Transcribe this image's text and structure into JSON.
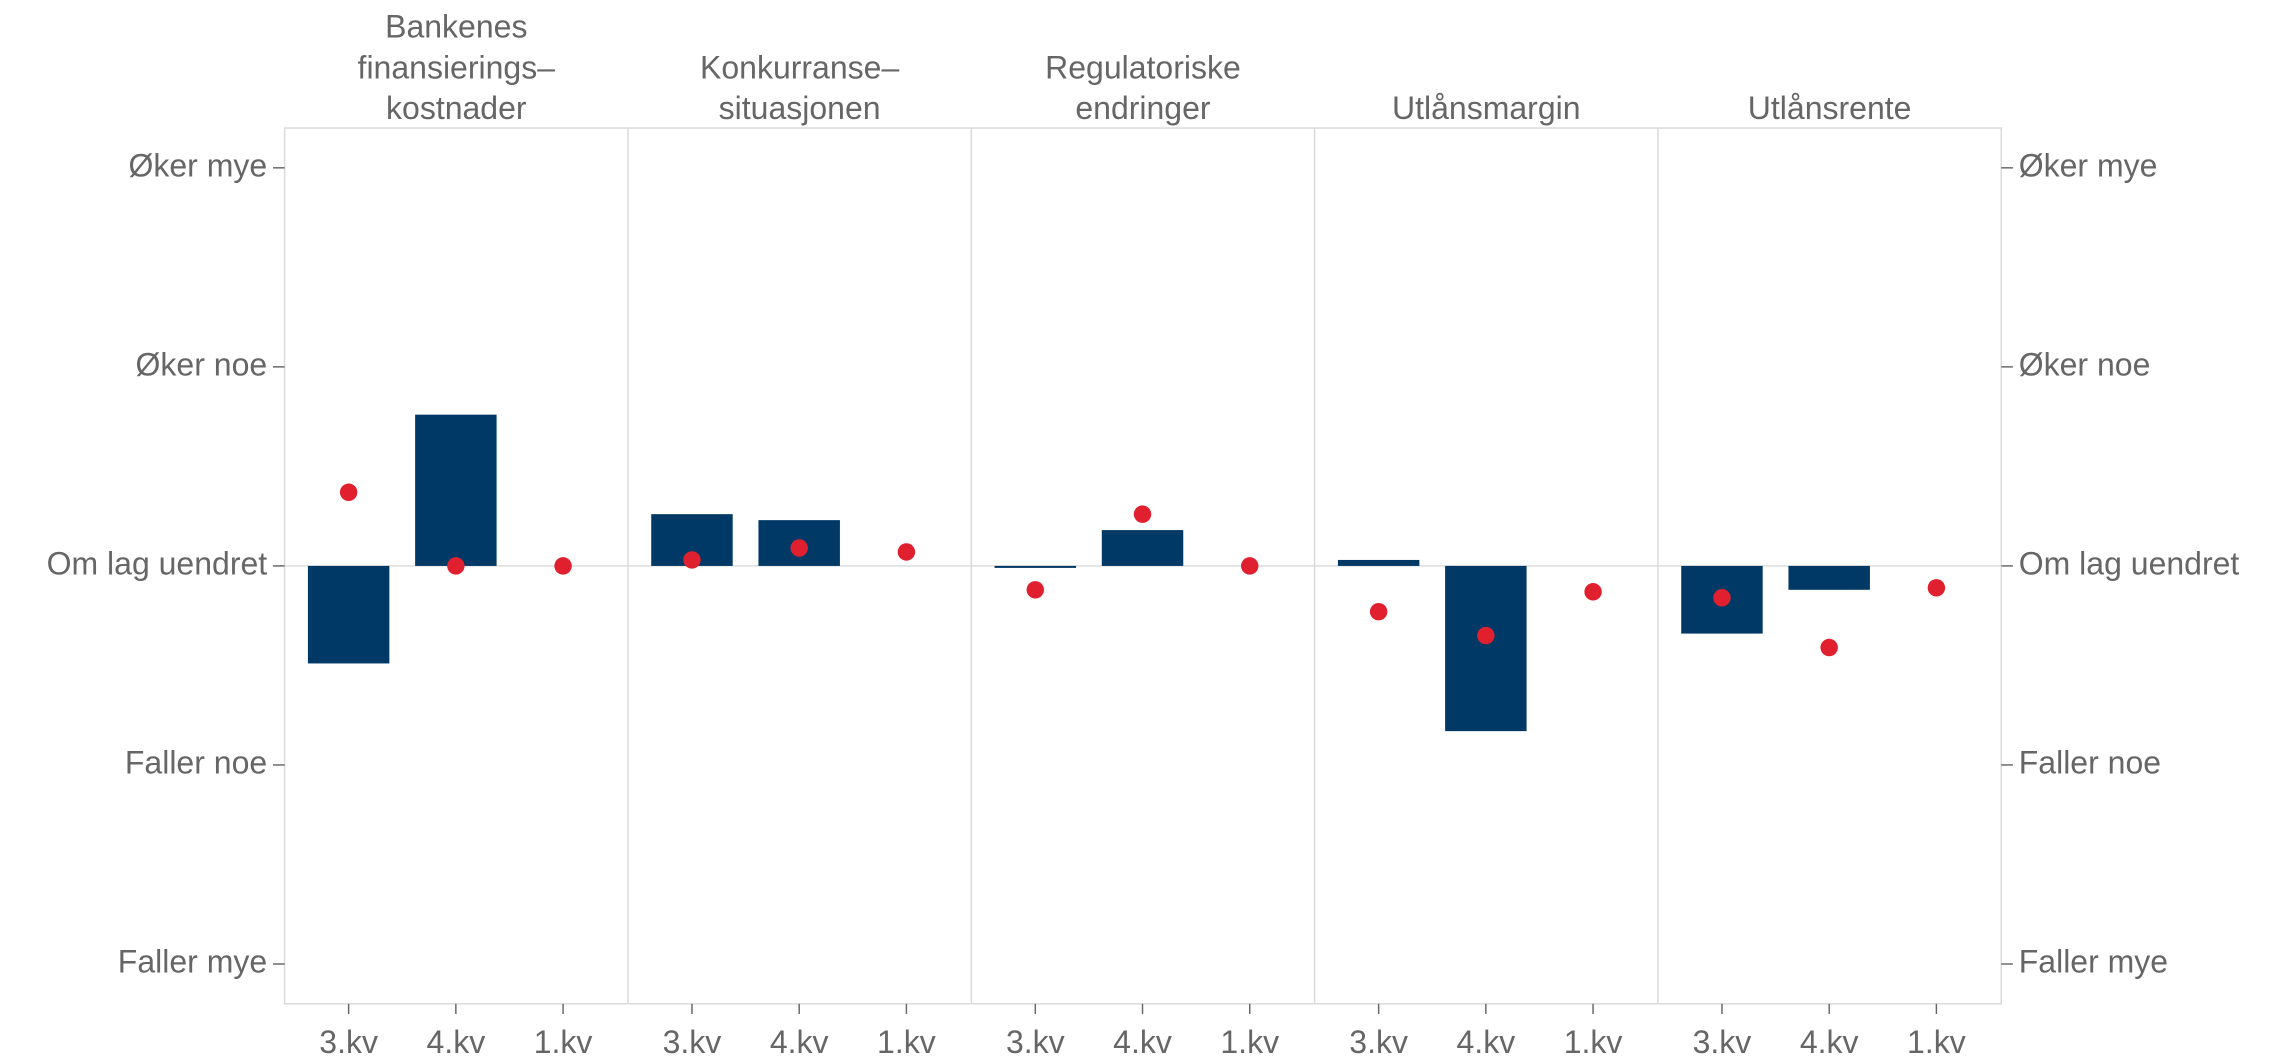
{
  "chart_data": {
    "type": "bar",
    "ylim": [
      -2.2,
      2.2
    ],
    "yticks": [
      {
        "value": 2,
        "label": "Øker mye"
      },
      {
        "value": 1,
        "label": "Øker noe"
      },
      {
        "value": 0,
        "label": "Om lag uendret"
      },
      {
        "value": -1,
        "label": "Faller noe"
      },
      {
        "value": -2,
        "label": "Faller mye"
      }
    ],
    "panels": [
      {
        "title": [
          "Bankenes",
          "finansierings–",
          "kostnader"
        ],
        "categories": [
          "3.kv",
          "4.kv",
          "1.kv"
        ],
        "bars": {
          "color": "#003966",
          "values": [
            -0.49,
            0.76,
            null
          ]
        },
        "dots": {
          "color": "#e0202f",
          "values": [
            0.37,
            0,
            0
          ]
        }
      },
      {
        "title": [
          "Konkurranse–",
          "situasjonen"
        ],
        "categories": [
          "3.kv",
          "4.kv",
          "1.kv"
        ],
        "bars": {
          "color": "#003966",
          "values": [
            0.26,
            0.23,
            null
          ]
        },
        "dots": {
          "color": "#e0202f",
          "values": [
            0.03,
            0.09,
            0.07
          ]
        }
      },
      {
        "title": [
          "Regulatoriske",
          "endringer"
        ],
        "categories": [
          "3.kv",
          "4.kv",
          "1.kv"
        ],
        "bars": {
          "color": "#003966",
          "values": [
            -0.01,
            0.18,
            null
          ]
        },
        "dots": {
          "color": "#e0202f",
          "values": [
            -0.12,
            0.26,
            0
          ]
        }
      },
      {
        "title": [
          "Utlånsmargin"
        ],
        "categories": [
          "3.kv",
          "4.kv",
          "1.kv"
        ],
        "bars": {
          "color": "#003966",
          "values": [
            0.03,
            -0.83,
            null
          ]
        },
        "dots": {
          "color": "#e0202f",
          "values": [
            -0.23,
            -0.35,
            -0.13
          ]
        }
      },
      {
        "title": [
          "Utlånsrente"
        ],
        "categories": [
          "3.kv",
          "4.kv",
          "1.kv"
        ],
        "bars": {
          "color": "#003966",
          "values": [
            -0.34,
            -0.12,
            null
          ]
        },
        "dots": {
          "color": "#e0202f",
          "values": [
            -0.16,
            -0.41,
            -0.11
          ]
        }
      }
    ]
  }
}
